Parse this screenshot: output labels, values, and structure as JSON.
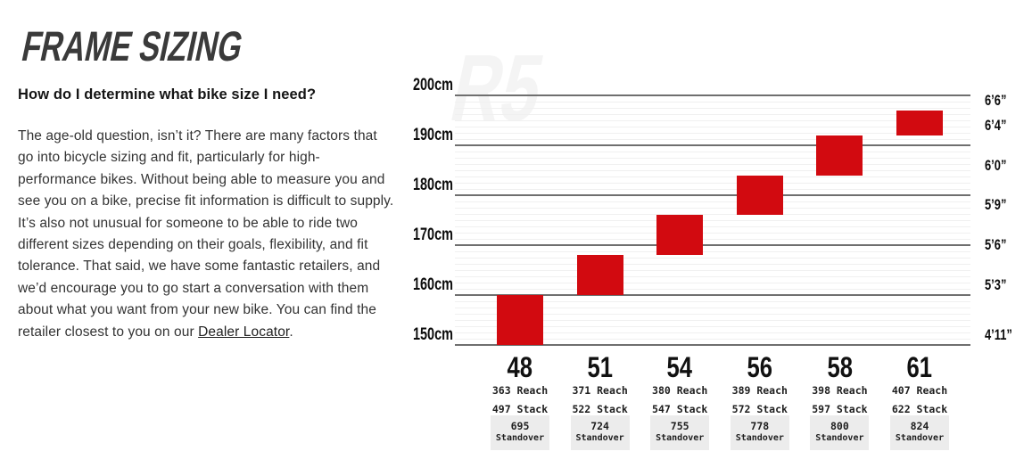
{
  "header": {
    "title": "FRAME SIZING",
    "question": "How do I determine what bike size I need?"
  },
  "intro": {
    "text_before_link": "The age-old question, isn’t it? There are many factors that go into bicycle sizing and fit, particularly for high-performance bikes. Without being able to measure you and see you on a bike, precise fit information is difficult to supply. It’s also not unusual for someone to be able to ride two different sizes depending on their goals, flexibility, and fit tolerance. That said, we have some fantastic retailers, and we’d encourage you to go start a conversation with them about what you want from your new bike. You can find the retailer closest to you on our ",
    "link_text": "Dealer Locator",
    "text_after_link": "."
  },
  "chart_data": {
    "type": "bar",
    "title": "",
    "watermark": "R5",
    "bar_color": "#d20a10",
    "grid": {
      "major_color": "#6f6f6f",
      "minor_color": "#f0f0f0",
      "y_min_cm": 150,
      "y_max_cm": 200,
      "major_step_cm": 10,
      "minor_divisions_per_major": 8
    },
    "y_axis_left": {
      "unit": "cm",
      "ticks": [
        {
          "label": "200cm",
          "cm": 200
        },
        {
          "label": "190cm",
          "cm": 190
        },
        {
          "label": "180cm",
          "cm": 180
        },
        {
          "label": "170cm",
          "cm": 170
        },
        {
          "label": "160cm",
          "cm": 160
        },
        {
          "label": "150cm",
          "cm": 150
        }
      ]
    },
    "y_axis_right": {
      "unit": "ft/in",
      "ticks": [
        {
          "label": "6’6”",
          "cm": 197
        },
        {
          "label": "6’4”",
          "cm": 192
        },
        {
          "label": "6’0”",
          "cm": 184
        },
        {
          "label": "5’9”",
          "cm": 176
        },
        {
          "label": "5’6”",
          "cm": 168
        },
        {
          "label": "5’3”",
          "cm": 160
        },
        {
          "label": "4’11”",
          "cm": 150
        }
      ]
    },
    "column_labels": {
      "reach": "Reach",
      "stack": "Stack",
      "standover": "Standover"
    },
    "sizes": [
      {
        "size": "48",
        "height_range_cm": [
          150,
          160
        ],
        "reach_mm": 363,
        "stack_mm": 497,
        "standover_mm": 695
      },
      {
        "size": "51",
        "height_range_cm": [
          160,
          168
        ],
        "reach_mm": 371,
        "stack_mm": 522,
        "standover_mm": 724
      },
      {
        "size": "54",
        "height_range_cm": [
          168,
          176
        ],
        "reach_mm": 380,
        "stack_mm": 547,
        "standover_mm": 755
      },
      {
        "size": "56",
        "height_range_cm": [
          176,
          184
        ],
        "reach_mm": 389,
        "stack_mm": 572,
        "standover_mm": 778
      },
      {
        "size": "58",
        "height_range_cm": [
          184,
          192
        ],
        "reach_mm": 398,
        "stack_mm": 597,
        "standover_mm": 800
      },
      {
        "size": "61",
        "height_range_cm": [
          192,
          197
        ],
        "reach_mm": 407,
        "stack_mm": 622,
        "standover_mm": 824
      }
    ]
  }
}
